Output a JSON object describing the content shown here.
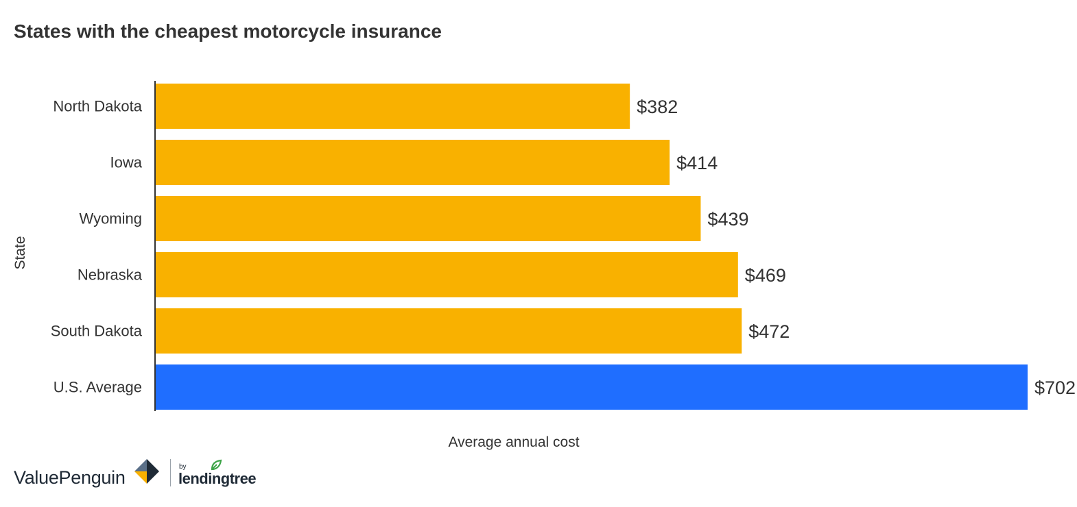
{
  "chart_data": {
    "type": "bar",
    "orientation": "horizontal",
    "title": "States with the cheapest motorcycle insurance",
    "xlabel": "Average annual cost",
    "ylabel": "State",
    "categories": [
      "North Dakota",
      "Iowa",
      "Wyoming",
      "Nebraska",
      "South Dakota",
      "U.S. Average"
    ],
    "values": [
      382,
      414,
      439,
      469,
      472,
      702
    ],
    "value_labels": [
      "$382",
      "$414",
      "$439",
      "$469",
      "$472",
      "$702"
    ],
    "bar_colors": [
      "#f9b100",
      "#f9b100",
      "#f9b100",
      "#f9b100",
      "#f9b100",
      "#1f6eff"
    ],
    "xlim": [
      0,
      702
    ],
    "grid": false,
    "legend": "none"
  },
  "branding": {
    "valuepenguin": "ValuePenguin",
    "by": "by",
    "lendingtree": "lendingtree"
  },
  "colors": {
    "state_bar": "#f9b100",
    "average_bar": "#1f6eff",
    "text": "#333333",
    "logo_dark": "#1f2a36",
    "logo_gold": "#f9b100",
    "logo_slate": "#5b7089",
    "leaf_green": "#3ea548"
  }
}
